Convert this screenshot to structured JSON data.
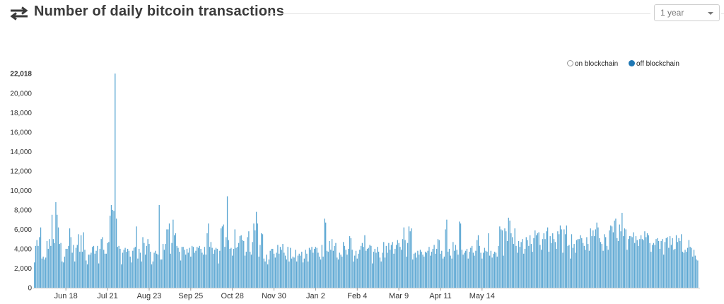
{
  "header": {
    "title": "Number of daily bitcoin transactions",
    "range_value": "1 year"
  },
  "legend": {
    "on_label": "on blockchain",
    "off_label": "off blockchain"
  },
  "colors": {
    "bar": "#5aa6d2",
    "bar_edge": "#3a88b8",
    "legend_off": "#1f77b4"
  },
  "chart_data": {
    "type": "bar",
    "ylim": [
      0,
      22018
    ],
    "y_ticks": [
      0,
      2000,
      4000,
      6000,
      8000,
      10000,
      12000,
      14000,
      16000,
      18000,
      20000,
      22018
    ],
    "y_tick_labels": [
      "0",
      "2,000",
      "4,000",
      "6,000",
      "8,000",
      "10,000",
      "12,000",
      "14,000",
      "16,000",
      "18,000",
      "20,000",
      "22,018"
    ],
    "x_tick_labels": [
      "Jun 18",
      "Jul 21",
      "Aug 23",
      "Sep 25",
      "Oct 28",
      "Nov 30",
      "Jan 2",
      "Feb 4",
      "Mar 9",
      "Apr 11",
      "May 14"
    ],
    "x_tick_index": [
      25,
      58,
      91,
      124,
      157,
      190,
      223,
      256,
      289,
      322,
      355
    ],
    "series": [
      {
        "values": [
          2600,
          4300,
          4900,
          4300,
          5200,
          6200,
          3000,
          3200,
          2900,
          3100,
          4800,
          4000,
          5000,
          4300,
          7500,
          5000,
          4600,
          8800,
          7500,
          6200,
          4500,
          4600,
          2700,
          2600,
          3200,
          4000,
          4000,
          4300,
          6100,
          5200,
          3600,
          4400,
          2700,
          4100,
          4400,
          5500,
          3700,
          5400,
          3700,
          5700,
          3900,
          2800,
          2400,
          3400,
          3400,
          3600,
          4200,
          4300,
          3500,
          3800,
          4300,
          2500,
          4000,
          5000,
          5200,
          3900,
          3500,
          3500,
          4600,
          4700,
          7400,
          8500,
          8000,
          7900,
          22018,
          7100,
          4200,
          4300,
          4000,
          2400,
          3600,
          3900,
          4100,
          3700,
          4000,
          3800,
          3200,
          2600,
          3800,
          4100,
          4200,
          6300,
          3000,
          4000,
          3600,
          2700,
          5200,
          4600,
          3400,
          4300,
          5000,
          4500,
          3700,
          2400,
          2700,
          3600,
          3800,
          3500,
          3400,
          8500,
          2900,
          2900,
          4500,
          3900,
          4500,
          6000,
          6000,
          6600,
          3500,
          4600,
          7000,
          5400,
          5600,
          4300,
          4100,
          3700,
          2800,
          4200,
          4200,
          3900,
          3400,
          4000,
          3600,
          4100,
          3200,
          4300,
          4200,
          3600,
          3800,
          4200,
          4100,
          4300,
          4000,
          3600,
          3400,
          4200,
          3400,
          5600,
          6600,
          4200,
          4700,
          4100,
          3500,
          3900,
          4100,
          4000,
          2500,
          3800,
          6100,
          6300,
          6500,
          4200,
          5200,
          9400,
          4900,
          4000,
          4100,
          3300,
          4000,
          6000,
          4100,
          4200,
          4600,
          5300,
          5400,
          4900,
          4800,
          3300,
          3700,
          5200,
          5800,
          3700,
          3400,
          4700,
          6600,
          5900,
          7800,
          6600,
          3200,
          4400,
          5600,
          5500,
          3000,
          2700,
          3400,
          2400,
          2900,
          3800,
          4000,
          4000,
          3500,
          3100,
          3600,
          4400,
          3500,
          4200,
          3900,
          4500,
          3600,
          3300,
          2900,
          4200,
          2700,
          4100,
          3000,
          3200,
          3100,
          3900,
          2700,
          3300,
          3500,
          3300,
          3700,
          2600,
          3000,
          3900,
          3500,
          2700,
          4100,
          3900,
          4200,
          3600,
          4000,
          4200,
          4100,
          3600,
          3200,
          2900,
          4400,
          3200,
          7100,
          6700,
          3800,
          3700,
          4800,
          3900,
          5000,
          3800,
          4300,
          4600,
          3100,
          2900,
          3600,
          3400,
          3200,
          4700,
          4300,
          3900,
          3400,
          4000,
          5300,
          5100,
          3900,
          2700,
          3300,
          3800,
          3000,
          3500,
          3900,
          4300,
          4600,
          4200,
          5400,
          3800,
          4000,
          4100,
          4400,
          4300,
          2500,
          3700,
          4000,
          3600,
          4200,
          3700,
          3100,
          2700,
          3600,
          4700,
          3100,
          4300,
          3600,
          4600,
          3900,
          4400,
          4700,
          3500,
          4000,
          4400,
          4900,
          4600,
          4200,
          3900,
          5000,
          6200,
          4900,
          3200,
          4600,
          6300,
          5800,
          6100,
          2900,
          3500,
          3600,
          3100,
          3800,
          3400,
          3900,
          3700,
          3400,
          3200,
          3700,
          3600,
          3800,
          4200,
          3300,
          3700,
          4000,
          4400,
          3500,
          4000,
          5000,
          4900,
          3500,
          3800,
          3000,
          3200,
          6000,
          7000,
          3700,
          4000,
          3300,
          3000,
          4700,
          3800,
          4400,
          3900,
          3400,
          6800,
          6600,
          3900,
          3400,
          3600,
          3800,
          4000,
          3000,
          3700,
          4100,
          4300,
          3600,
          3300,
          3800,
          4900,
          5400,
          4300,
          3600,
          3000,
          3600,
          4100,
          3800,
          3700,
          5600,
          3300,
          3800,
          3100,
          3500,
          3700,
          3600,
          3200,
          4300,
          6300,
          6000,
          5900,
          3300,
          6100,
          5800,
          4800,
          7200,
          6900,
          5600,
          5200,
          4500,
          6100,
          4300,
          3600,
          4800,
          4200,
          4700,
          5000,
          3500,
          4000,
          5200,
          4900,
          4300,
          5400,
          4500,
          3700,
          5100,
          5900,
          5400,
          5600,
          5700,
          4400,
          3900,
          5000,
          5600,
          5000,
          5800,
          6200,
          3700,
          5300,
          4600,
          5600,
          5000,
          4700,
          4000,
          5800,
          5500,
          6400,
          6000,
          3600,
          6000,
          5500,
          6400,
          4300,
          4400,
          3000,
          5500,
          4100,
          4500,
          3600,
          4900,
          5000,
          5000,
          5400,
          5100,
          4600,
          4300,
          3900,
          5200,
          4500,
          3800,
          6100,
          5300,
          5900,
          5300,
          6000,
          6700,
          6200,
          5100,
          4700,
          4500,
          3800,
          5500,
          5200,
          4300,
          3900,
          5900,
          6400,
          6300,
          5700,
          6900,
          7100,
          5100,
          4800,
          6500,
          5800,
          7700,
          5300,
          6100,
          6000,
          3900,
          5000,
          5300,
          5300,
          5200,
          5700,
          4600,
          5300,
          4900,
          4300,
          5000,
          5400,
          5000,
          4900,
          5800,
          5200,
          5600,
          5400,
          4600,
          3700,
          4400,
          4600,
          4400,
          5000,
          5100,
          4800,
          4000,
          4800,
          5000,
          3400,
          4700,
          5100,
          5200,
          4100,
          5300,
          4400,
          5100,
          3900,
          4000,
          5400,
          4700,
          5100,
          4800,
          5500,
          3700,
          3600,
          3900,
          3700,
          4100,
          4900,
          4200,
          4100,
          3200,
          3900,
          3300,
          2900,
          2800
        ]
      }
    ]
  }
}
